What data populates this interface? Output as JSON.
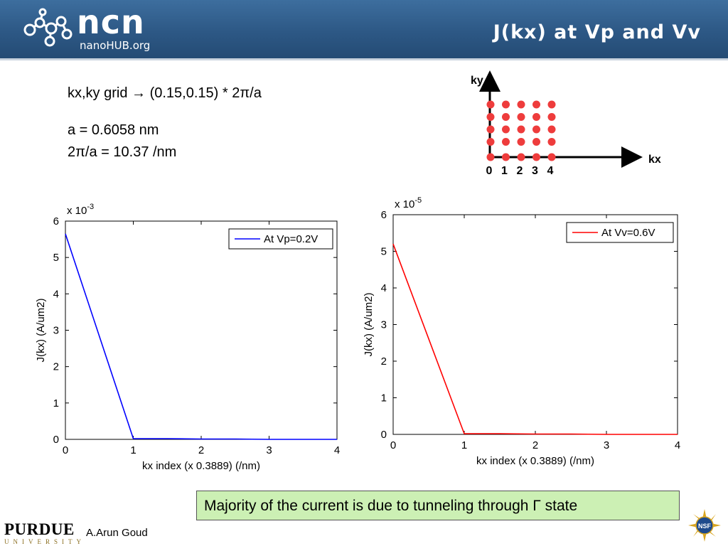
{
  "header": {
    "logo_main": "ncn",
    "logo_sub": "nanoHUB.org",
    "title": "J(kx) at Vp and Vv"
  },
  "text": {
    "grid_prefix": "kx,ky grid ",
    "grid_arrow": "→",
    "grid_suffix": " (0.15,0.15) * 2π/a",
    "lattice": "a = 0.6058 nm",
    "two_pi_a": "2π/a = 10.37 /nm"
  },
  "k_grid": {
    "y_label": "ky",
    "x_label": "kx",
    "x_ticks": [
      "0",
      "1",
      "2",
      "3",
      "4"
    ],
    "rows": 5,
    "cols": 5,
    "dot_color": "#ee3c3c"
  },
  "chart_data": [
    {
      "type": "line",
      "xlabel": "kx index (x 0.3889) (/nm)",
      "ylabel": "J(kx) (A/um2)",
      "y_multiplier_base": "x 10",
      "y_multiplier_exp": "-3",
      "xlim": [
        0,
        4
      ],
      "ylim": [
        0,
        6
      ],
      "x_ticks": [
        0,
        1,
        2,
        3,
        4
      ],
      "y_ticks": [
        0,
        1,
        2,
        3,
        4,
        5,
        6
      ],
      "legend_position": "top-right",
      "series": [
        {
          "name": "At Vp=0.2V",
          "color": "#0000ff",
          "x": [
            0,
            1,
            1.5,
            2,
            2.5,
            3,
            4
          ],
          "y": [
            5.65,
            0.02,
            0.02,
            0.01,
            0.01,
            0.0,
            0.0
          ]
        }
      ]
    },
    {
      "type": "line",
      "xlabel": "kx index (x 0.3889) (/nm)",
      "ylabel": "J(kx) (A/um2)",
      "y_multiplier_base": "x 10",
      "y_multiplier_exp": "-5",
      "xlim": [
        0,
        4
      ],
      "ylim": [
        0,
        6
      ],
      "x_ticks": [
        0,
        1,
        2,
        3,
        4
      ],
      "y_ticks": [
        0,
        1,
        2,
        3,
        4,
        5,
        6
      ],
      "legend_position": "top-right",
      "series": [
        {
          "name": "At Vv=0.6V",
          "color": "#ff0000",
          "x": [
            0,
            1,
            1.5,
            2,
            2.5,
            3,
            4
          ],
          "y": [
            5.2,
            0.02,
            0.02,
            0.01,
            0.01,
            0.0,
            0.0
          ]
        }
      ]
    }
  ],
  "callout": "Majority of the current is due to tunneling through Γ state",
  "footer": {
    "university_main": "PURDUE",
    "university_sub": "UNIVERSITY",
    "author": "A.Arun Goud"
  }
}
